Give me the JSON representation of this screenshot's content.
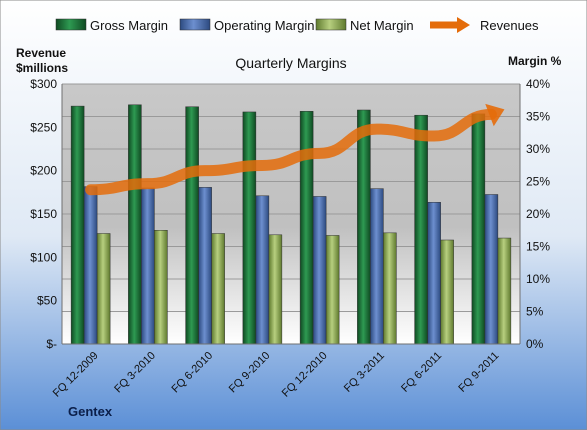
{
  "chart_data": {
    "type": "bar",
    "title": "Quarterly Margins",
    "footer": "Gentex",
    "categories": [
      "FQ 12-2009",
      "FQ 3-2010",
      "FQ 6-2010",
      "FQ 9-2010",
      "FQ 12-2010",
      "FQ 3-2011",
      "FQ 6-2011",
      "FQ 9-2011"
    ],
    "series": [
      {
        "name": "Gross Margin",
        "axis": "right",
        "color": "#1f7a3a",
        "values": [
          36.6,
          36.8,
          36.5,
          35.7,
          35.8,
          36.0,
          35.2,
          35.4
        ]
      },
      {
        "name": "Operating Margin",
        "axis": "right",
        "color": "#4a6fb3",
        "values": [
          24.2,
          24.0,
          24.1,
          22.8,
          22.7,
          23.9,
          21.8,
          23.0
        ]
      },
      {
        "name": "Net Margin",
        "axis": "right",
        "color": "#9bbb59",
        "values": [
          17.0,
          17.5,
          17.0,
          16.8,
          16.7,
          17.1,
          16.0,
          16.3
        ]
      },
      {
        "name": "Revenues",
        "axis": "left",
        "type": "line",
        "color": "#e46c0a",
        "values": [
          178,
          185,
          200,
          206,
          220,
          248,
          240,
          265
        ]
      }
    ],
    "left_axis": {
      "label_lines": [
        "Revenue",
        "$millions"
      ],
      "ticks": [
        "$-",
        "$50",
        "$100",
        "$150",
        "$200",
        "$250",
        "$300"
      ],
      "range": [
        0,
        300
      ]
    },
    "right_axis": {
      "label": "Margin  %",
      "ticks": [
        "0%",
        "5%",
        "10%",
        "15%",
        "20%",
        "25%",
        "30%",
        "35%",
        "40%"
      ],
      "range": [
        0,
        40
      ]
    },
    "legend_position": "top",
    "grid": true
  }
}
